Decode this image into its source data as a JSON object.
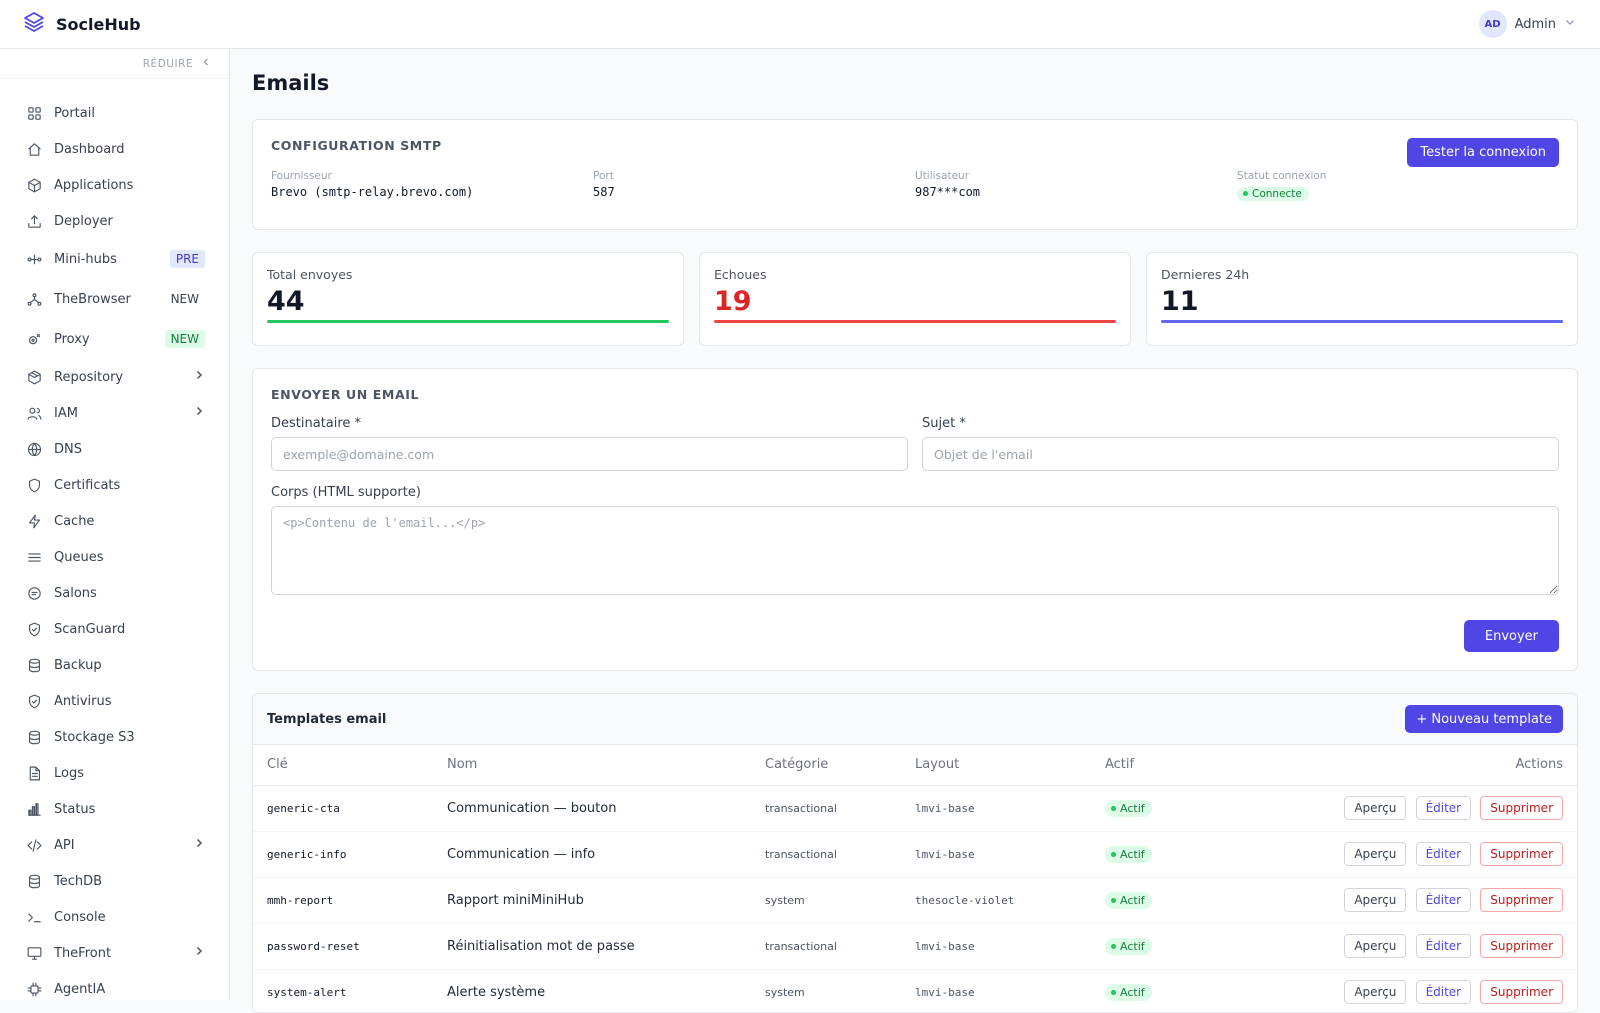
{
  "header": {
    "brand": "SocleHub",
    "user_initials": "AD",
    "user_name": "Admin"
  },
  "sidebar": {
    "collapse_label": "RÉDUIRE",
    "items": [
      {
        "label": "Portail",
        "icon": "grid-icon"
      },
      {
        "label": "Dashboard",
        "icon": "home-icon"
      },
      {
        "label": "Applications",
        "icon": "cube-icon"
      },
      {
        "label": "Deployer",
        "icon": "upload-icon"
      },
      {
        "label": "Mini-hubs",
        "icon": "nodes-icon",
        "badge": "PRE"
      },
      {
        "label": "TheBrowser",
        "icon": "network-icon",
        "badge": "NEW"
      },
      {
        "label": "Proxy",
        "icon": "proxy-icon",
        "badge": "NEW"
      },
      {
        "label": "Repository",
        "icon": "package-icon"
      },
      {
        "label": "IAM",
        "icon": "users-icon"
      },
      {
        "label": "DNS",
        "icon": "globe-icon"
      },
      {
        "label": "Certificats",
        "icon": "shield-icon"
      },
      {
        "label": "Cache",
        "icon": "bolt-icon"
      },
      {
        "label": "Queues",
        "icon": "list-icon"
      },
      {
        "label": "Salons",
        "icon": "chat-icon"
      },
      {
        "label": "ScanGuard",
        "icon": "shield-check-icon"
      },
      {
        "label": "Backup",
        "icon": "database-icon"
      },
      {
        "label": "Antivirus",
        "icon": "shield-check-icon"
      },
      {
        "label": "Stockage S3",
        "icon": "database-icon"
      },
      {
        "label": "Logs",
        "icon": "file-icon"
      },
      {
        "label": "Status",
        "icon": "bar-chart-icon"
      },
      {
        "label": "API",
        "icon": "code-icon"
      },
      {
        "label": "TechDB",
        "icon": "database-icon"
      },
      {
        "label": "Console",
        "icon": "terminal-icon"
      },
      {
        "label": "TheFront",
        "icon": "monitor-icon"
      },
      {
        "label": "AgentIA",
        "icon": "cpu-icon"
      }
    ]
  },
  "page": {
    "title": "Emails"
  },
  "smtp": {
    "title": "CONFIGURATION SMTP",
    "test_button": "Tester la connexion",
    "fields": [
      {
        "label": "Fournisseur",
        "value": "Brevo (smtp-relay.brevo.com)"
      },
      {
        "label": "Port",
        "value": "587"
      },
      {
        "label": "Utilisateur",
        "value": "987***com"
      },
      {
        "label": "Statut connexion",
        "value": "Connecte"
      }
    ]
  },
  "stats": [
    {
      "label": "Total envoyes",
      "value": "44",
      "color": "#22c55e",
      "value_color": "#111827"
    },
    {
      "label": "Echoues",
      "value": "19",
      "color": "#ef4444",
      "value_color": "#dc2626"
    },
    {
      "label": "Dernieres 24h",
      "value": "11",
      "color": "#6366f1",
      "value_color": "#111827"
    }
  ],
  "send": {
    "title": "ENVOYER UN EMAIL",
    "recipient_label": "Destinataire *",
    "recipient_placeholder": "exemple@domaine.com",
    "subject_label": "Sujet *",
    "subject_placeholder": "Objet de l'email",
    "body_label": "Corps (HTML supporte)",
    "body_placeholder": "<p>Contenu de l'email...</p>",
    "send_button": "Envoyer"
  },
  "templates": {
    "title": "Templates email",
    "new_button": "+ Nouveau template",
    "columns": [
      "Clé",
      "Nom",
      "Catégorie",
      "Layout",
      "Actif",
      "Actions"
    ],
    "action_labels": {
      "preview": "Aperçu",
      "edit": "Éditer",
      "delete": "Supprimer"
    },
    "rows": [
      {
        "key": "generic-cta",
        "name": "Communication — bouton",
        "category": "transactional",
        "layout": "lmvi-base",
        "active": "Actif"
      },
      {
        "key": "generic-info",
        "name": "Communication — info",
        "category": "transactional",
        "layout": "lmvi-base",
        "active": "Actif"
      },
      {
        "key": "mmh-report",
        "name": "Rapport miniMiniHub",
        "category": "system",
        "layout": "thesocle-violet",
        "active": "Actif"
      },
      {
        "key": "password-reset",
        "name": "Réinitialisation mot de passe",
        "category": "transactional",
        "layout": "lmvi-base",
        "active": "Actif"
      },
      {
        "key": "system-alert",
        "name": "Alerte système",
        "category": "system",
        "layout": "lmvi-base",
        "active": "Actif"
      }
    ]
  }
}
